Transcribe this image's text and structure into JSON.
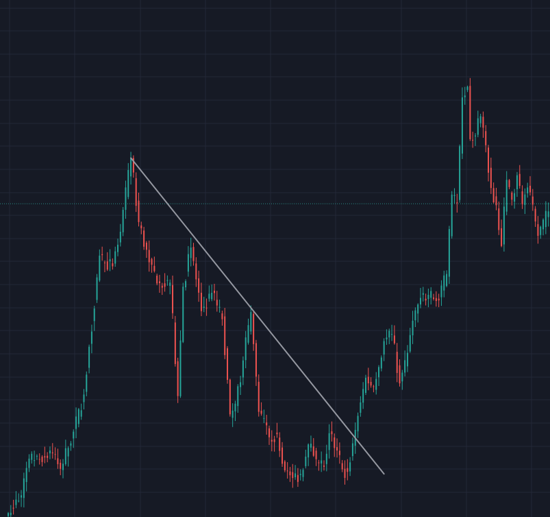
{
  "colors": {
    "background": "#161a25",
    "grid": "#232838",
    "up": "#26a69a",
    "down": "#ef5350",
    "trendline": "#9598a1",
    "price_line": "#2a8c86"
  },
  "chart_data": {
    "type": "candlestick",
    "title": "",
    "xlabel": "",
    "ylabel": "",
    "grid": true,
    "ylim": [
      0,
      1000
    ],
    "current_price": 613,
    "trendline": {
      "start": [
        47,
        703
      ],
      "end": [
        144,
        82
      ]
    },
    "anchors": [
      [
        0,
        5
      ],
      [
        5,
        40
      ],
      [
        8,
        112
      ],
      [
        12,
        110
      ],
      [
        16,
        128
      ],
      [
        20,
        92
      ],
      [
        25,
        165
      ],
      [
        29,
        238
      ],
      [
        31,
        332
      ],
      [
        35,
        511
      ],
      [
        37,
        497
      ],
      [
        40,
        490
      ],
      [
        43,
        558
      ],
      [
        47,
        703
      ],
      [
        50,
        577
      ],
      [
        54,
        498
      ],
      [
        58,
        457
      ],
      [
        62,
        458
      ],
      [
        65,
        235
      ],
      [
        67,
        450
      ],
      [
        70,
        527
      ],
      [
        74,
        402
      ],
      [
        78,
        438
      ],
      [
        82,
        386
      ],
      [
        85,
        199
      ],
      [
        87,
        220
      ],
      [
        90,
        305
      ],
      [
        93,
        400
      ],
      [
        96,
        204
      ],
      [
        100,
        154
      ],
      [
        103,
        160
      ],
      [
        106,
        89
      ],
      [
        109,
        74
      ],
      [
        112,
        82
      ],
      [
        115,
        140
      ],
      [
        118,
        111
      ],
      [
        121,
        96
      ],
      [
        123,
        162
      ],
      [
        126,
        128
      ],
      [
        128,
        91
      ],
      [
        130,
        86
      ],
      [
        134,
        196
      ],
      [
        137,
        271
      ],
      [
        140,
        253
      ],
      [
        142,
        292
      ],
      [
        144,
        343
      ],
      [
        147,
        357
      ],
      [
        150,
        260
      ],
      [
        153,
        320
      ],
      [
        155,
        383
      ],
      [
        158,
        428
      ],
      [
        161,
        434
      ],
      [
        165,
        423
      ],
      [
        168,
        475
      ],
      [
        170,
        631
      ],
      [
        172,
        614
      ],
      [
        174,
        822
      ],
      [
        176,
        843
      ],
      [
        177,
        740
      ],
      [
        179,
        747
      ],
      [
        181,
        785
      ],
      [
        183,
        728
      ],
      [
        185,
        644
      ],
      [
        187,
        610
      ],
      [
        189,
        530
      ],
      [
        191,
        660
      ],
      [
        193,
        621
      ],
      [
        195,
        669
      ],
      [
        197,
        612
      ],
      [
        199,
        645
      ],
      [
        203,
        550
      ],
      [
        207,
        598
      ]
    ]
  }
}
